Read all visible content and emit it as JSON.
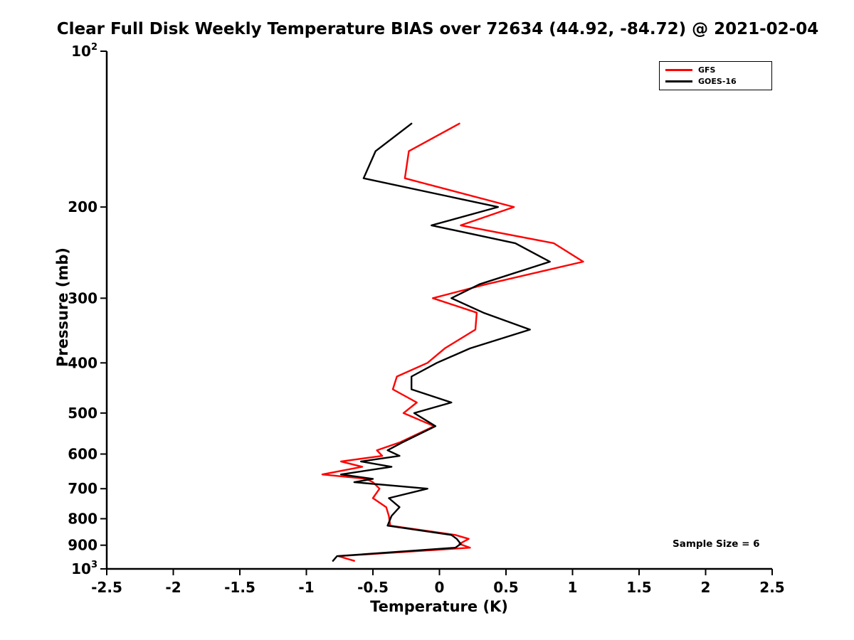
{
  "chart_data": {
    "type": "line",
    "title": "Clear Full Disk Weekly Temperature BIAS over 72634 (44.92, -84.72) @ 2021-02-04",
    "xlabel": "Temperature (K)",
    "ylabel": "Pressure (mb)",
    "xlim": [
      -2.5,
      2.5
    ],
    "ylim": [
      100,
      1000
    ],
    "yscale": "log",
    "y_axis_inverted": true,
    "grid": false,
    "legend_position": "top-right",
    "annotation": "Sample Size = 6",
    "axis_color": "#000000",
    "background_color": "#ffffff",
    "xticks": {
      "values": [
        -2.5,
        -2,
        -1.5,
        -1,
        -0.5,
        0,
        0.5,
        1,
        1.5,
        2,
        2.5
      ],
      "labels": [
        "-2.5",
        "-2",
        "-1.5",
        "-1",
        "-0.5",
        "0",
        "0.5",
        "1",
        "1.5",
        "2",
        "2.5"
      ]
    },
    "yticks": [
      {
        "value": 100,
        "label": "10",
        "sup": "2"
      },
      {
        "value": 200,
        "label": "200"
      },
      {
        "value": 300,
        "label": "300"
      },
      {
        "value": 400,
        "label": "400"
      },
      {
        "value": 500,
        "label": "500"
      },
      {
        "value": 600,
        "label": "600"
      },
      {
        "value": 700,
        "label": "700"
      },
      {
        "value": 800,
        "label": "800"
      },
      {
        "value": 900,
        "label": "900"
      },
      {
        "value": 1000,
        "label": "10",
        "sup": "3"
      }
    ],
    "pressure_mb": [
      138,
      156,
      176,
      200,
      217,
      235,
      255,
      282,
      300,
      320,
      345,
      375,
      400,
      425,
      450,
      477,
      500,
      530,
      570,
      590,
      605,
      620,
      635,
      657,
      670,
      680,
      700,
      730,
      760,
      790,
      825,
      860,
      875,
      895,
      910,
      945,
      965
    ],
    "series": [
      {
        "name": "GFS",
        "color": "#ff0000",
        "values": [
          0.15,
          -0.23,
          -0.26,
          0.56,
          0.16,
          0.86,
          1.08,
          0.35,
          -0.05,
          0.28,
          0.27,
          0.04,
          -0.09,
          -0.32,
          -0.35,
          -0.17,
          -0.27,
          -0.04,
          -0.3,
          -0.47,
          -0.43,
          -0.74,
          -0.58,
          -0.88,
          -0.55,
          -0.5,
          -0.45,
          -0.5,
          -0.4,
          -0.38,
          -0.37,
          0.12,
          0.22,
          0.15,
          0.23,
          -0.76,
          -0.64
        ]
      },
      {
        "name": "GOES-16",
        "color": "#000000",
        "values": [
          -0.21,
          -0.48,
          -0.57,
          0.44,
          -0.06,
          0.57,
          0.83,
          0.3,
          0.09,
          0.33,
          0.68,
          0.23,
          -0.02,
          -0.21,
          -0.21,
          0.09,
          -0.19,
          -0.03,
          -0.28,
          -0.39,
          -0.3,
          -0.59,
          -0.36,
          -0.74,
          -0.5,
          -0.64,
          -0.09,
          -0.38,
          -0.3,
          -0.36,
          -0.39,
          0.09,
          0.13,
          0.16,
          0.12,
          -0.77,
          -0.8
        ]
      }
    ]
  }
}
